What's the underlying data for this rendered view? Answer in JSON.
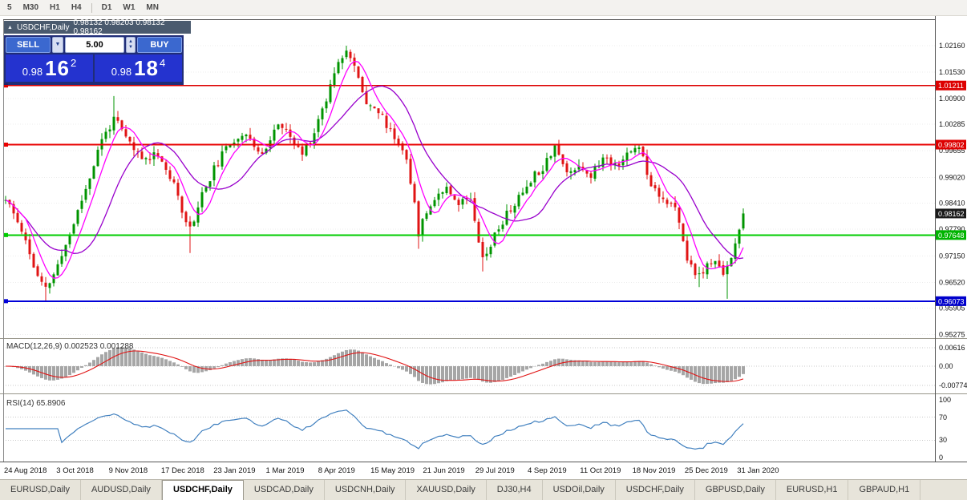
{
  "toolbar": {
    "timeframes_left": [
      "5",
      "M30",
      "H1",
      "H4"
    ],
    "timeframes_right": [
      "D1",
      "W1",
      "MN"
    ]
  },
  "chart": {
    "title": "USDCHF,Daily",
    "ohlc_text": "0.98132 0.98203 0.98132 0.98162"
  },
  "trade_panel": {
    "sell_label": "SELL",
    "buy_label": "BUY",
    "lot_size": "5.00",
    "sell_price": {
      "prefix": "0.98",
      "big": "16",
      "sup": "2"
    },
    "buy_price": {
      "prefix": "0.98",
      "big": "18",
      "sup": "4"
    }
  },
  "price_axis": {
    "ticks": [
      "1.02160",
      "1.01530",
      "1.00900",
      "1.00285",
      "0.99655",
      "0.99020",
      "0.98410",
      "0.97790",
      "0.97150",
      "0.96520",
      "0.95905",
      "0.95275"
    ],
    "badges": [
      {
        "value": "1.01211",
        "price": 1.01211,
        "color": "#dd0000"
      },
      {
        "value": "0.99802",
        "price": 0.99802,
        "color": "#dd0000"
      },
      {
        "value": "0.98162",
        "price": 0.98162,
        "color": "#1a1a1a"
      },
      {
        "value": "0.97648",
        "price": 0.97648,
        "color": "#00b400"
      },
      {
        "value": "0.96073",
        "price": 0.96073,
        "color": "#0000cc"
      }
    ]
  },
  "hlines": [
    {
      "price": 1.01211,
      "color": "#dd0000",
      "width": 1.6
    },
    {
      "price": 0.99802,
      "color": "#e80000",
      "width": 2
    },
    {
      "price": 0.97648,
      "color": "#00cc00",
      "width": 2
    },
    {
      "price": 0.96073,
      "color": "#0000d8",
      "width": 2
    }
  ],
  "macd_panel": {
    "label": "MACD(12,26,9)",
    "values": "0.002523 0.001288",
    "axis": [
      "0.00616",
      "0.00",
      "-0.00774"
    ]
  },
  "rsi_panel": {
    "label": "RSI(14)",
    "value": "65.8906",
    "axis": [
      "100",
      "70",
      "30",
      "0"
    ],
    "levels": [
      70,
      30
    ]
  },
  "dates": [
    "24 Aug 2018",
    "3 Oct 2018",
    "9 Nov 2018",
    "17 Dec 2018",
    "23 Jan 2019",
    "1 Mar 2019",
    "8 Apr 2019",
    "15 May 2019",
    "21 Jun 2019",
    "29 Jul 2019",
    "4 Sep 2019",
    "11 Oct 2019",
    "18 Nov 2019",
    "25 Dec 2019",
    "31 Jan 2020"
  ],
  "tabs": [
    {
      "label": "EURUSD,Daily",
      "active": false
    },
    {
      "label": "AUDUSD,Daily",
      "active": false
    },
    {
      "label": "USDCHF,Daily",
      "active": true
    },
    {
      "label": "USDCAD,Daily",
      "active": false
    },
    {
      "label": "USDCNH,Daily",
      "active": false
    },
    {
      "label": "XAUUSD,Daily",
      "active": false
    },
    {
      "label": "DJ30,H4",
      "active": false
    },
    {
      "label": "USDOil,Daily",
      "active": false
    },
    {
      "label": "USDCHF,Daily",
      "active": false
    },
    {
      "label": "GBPUSD,Daily",
      "active": false
    },
    {
      "label": "EURUSD,H1",
      "active": false
    },
    {
      "label": "GBPAUD,H1",
      "active": false
    }
  ],
  "chart_data": {
    "type": "candlestick",
    "symbol": "USDCHF",
    "period": "Daily",
    "current": {
      "open": 0.98132,
      "high": 0.98203,
      "low": 0.98132,
      "bid": 0.98162,
      "ask": 0.98184
    },
    "y_axis_range": [
      0.95275,
      1.0216
    ],
    "indicators": {
      "ma_periods": [
        6,
        16
      ],
      "macd": [
        12,
        26,
        9
      ],
      "rsi": 14
    },
    "price_path_anchors": [
      [
        0,
        0.9848
      ],
      [
        4,
        0.978
      ],
      [
        8,
        0.9662
      ],
      [
        10,
        0.9634
      ],
      [
        13,
        0.969
      ],
      [
        17,
        0.9794
      ],
      [
        21,
        0.9904
      ],
      [
        24,
        0.9992
      ],
      [
        27,
        1.0042
      ],
      [
        30,
        0.9996
      ],
      [
        34,
        0.9944
      ],
      [
        38,
        0.9962
      ],
      [
        42,
        0.988
      ],
      [
        46,
        0.9778
      ],
      [
        49,
        0.9862
      ],
      [
        53,
        0.994
      ],
      [
        57,
        0.9994
      ],
      [
        60,
        1.0012
      ],
      [
        63,
        0.9954
      ],
      [
        66,
        0.9992
      ],
      [
        68,
        1.0032
      ],
      [
        71,
        0.9994
      ],
      [
        74,
        0.9958
      ],
      [
        77,
        1.0012
      ],
      [
        80,
        1.0092
      ],
      [
        83,
        1.0186
      ],
      [
        85,
        1.0206
      ],
      [
        87,
        1.0162
      ],
      [
        90,
        1.0086
      ],
      [
        93,
        1.0058
      ],
      [
        96,
        1.0012
      ],
      [
        100,
        0.9954
      ],
      [
        103,
        0.9772
      ],
      [
        106,
        0.9842
      ],
      [
        110,
        0.9884
      ],
      [
        113,
        0.984
      ],
      [
        116,
        0.9858
      ],
      [
        119,
        0.9708
      ],
      [
        122,
        0.9764
      ],
      [
        125,
        0.9814
      ],
      [
        128,
        0.9852
      ],
      [
        131,
        0.99
      ],
      [
        134,
        0.9928
      ],
      [
        137,
        0.998
      ],
      [
        140,
        0.991
      ],
      [
        143,
        0.9934
      ],
      [
        146,
        0.9908
      ],
      [
        149,
        0.9948
      ],
      [
        152,
        0.9934
      ],
      [
        155,
        0.9954
      ],
      [
        158,
        0.998
      ],
      [
        161,
        0.9888
      ],
      [
        164,
        0.9854
      ],
      [
        167,
        0.9826
      ],
      [
        170,
        0.9708
      ],
      [
        173,
        0.9664
      ],
      [
        176,
        0.9702
      ],
      [
        179,
        0.9678
      ],
      [
        181,
        0.9714
      ],
      [
        183,
        0.9772
      ],
      [
        184,
        0.98162
      ]
    ],
    "extremes": {
      "high": [
        [
          85,
          1.0216
        ],
        [
          27,
          1.0096
        ]
      ],
      "low": [
        [
          10,
          0.9607
        ],
        [
          46,
          0.9722
        ],
        [
          103,
          0.9732
        ],
        [
          119,
          0.9678
        ],
        [
          173,
          0.9641
        ],
        [
          180,
          0.9613
        ]
      ]
    },
    "colors": {
      "up": "#009400",
      "down": "#e01414",
      "ma_fast": "#ff00ff",
      "ma_slow": "#9900cc",
      "macd_hist": "#a6a6a6",
      "macd_signal": "#e01414",
      "rsi": "#4180bf",
      "grid": "#ececec"
    }
  }
}
